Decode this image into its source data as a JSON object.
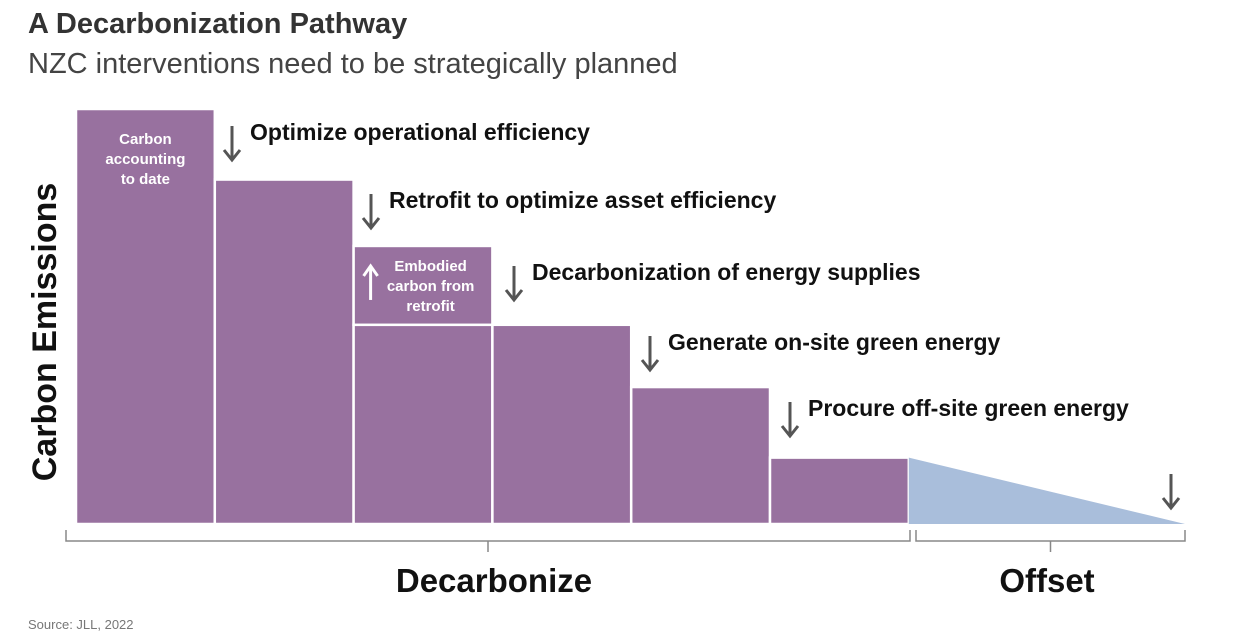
{
  "title": "A Decarbonization Pathway",
  "subtitle": "NZC interventions need to be strategically planned",
  "source": "Source: JLL, 2022",
  "chart_data": {
    "type": "bar",
    "title": "A Decarbonization Pathway",
    "subtitle": "NZC interventions need to be strategically planned",
    "ylabel": "Carbon Emissions",
    "xlabel": "",
    "y_axis_ticks": false,
    "grid": false,
    "bars": [
      {
        "label": "Carbon accounting to date",
        "label_lines": [
          "Carbon",
          "accounting",
          "to date"
        ],
        "value": 100
      },
      {
        "label": "Optimize operational efficiency",
        "value": 83
      },
      {
        "label": "Retrofit to optimize asset efficiency",
        "value": 48,
        "added_value": 19,
        "added_label_lines": [
          "Embodied",
          "carbon from",
          "retrofit"
        ],
        "added_direction": "up"
      },
      {
        "label": "Decarbonization of energy supplies",
        "value": 48
      },
      {
        "label": "Generate on-site green energy",
        "value": 33
      },
      {
        "label": "Procure off-site green energy",
        "value": 16
      }
    ],
    "offset": {
      "from_value": 16,
      "to_value": 0
    },
    "annotations": [
      "Optimize operational efficiency",
      "Retrofit to optimize asset efficiency",
      "Decarbonization of energy supplies",
      "Generate on-site green energy",
      "Procure off-site green energy"
    ],
    "groups": [
      {
        "label": "Decarbonize"
      },
      {
        "label": "Offset"
      }
    ],
    "colors": {
      "bar": "#98719f",
      "offset": "#a9bedb",
      "arrow": "#555555",
      "bar_text": "#ffffff",
      "text": "#111111"
    }
  }
}
